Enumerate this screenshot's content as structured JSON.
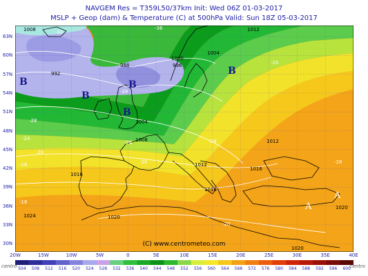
{
  "header": {
    "line1": "NAVGEM Res = T359L50/37km    Init: Wed 06Z 01-03-2017",
    "line2": "MSLP + Geop (dam) & Temperature (C) at 500hPa   Valid: Sun 18Z 05-03-2017"
  },
  "lat_labels": [
    "63N",
    "60N",
    "57N",
    "54N",
    "51N",
    "48N",
    "45N",
    "42N",
    "39N",
    "36N",
    "33N",
    "30N"
  ],
  "lon_labels": [
    "20W",
    "15W",
    "10W",
    "5W",
    "0",
    "5E",
    "10E",
    "15E",
    "20E",
    "25E",
    "30E",
    "35E",
    "40E"
  ],
  "credit": "(C) www.centrometeo.com",
  "brand_left": "centro",
  "brand_right": "centro",
  "colorbar": {
    "labels": [
      "504",
      "508",
      "512",
      "516",
      "520",
      "524",
      "528",
      "532",
      "536",
      "540",
      "544",
      "548",
      "552",
      "556",
      "560",
      "564",
      "568",
      "572",
      "576",
      "580",
      "584",
      "588",
      "592",
      "596",
      "600"
    ],
    "colors": [
      "#1e1e78",
      "#2d2d9c",
      "#4040b8",
      "#6262cc",
      "#8484dc",
      "#a8a8ec",
      "#caa0e8",
      "#6ad080",
      "#2ec03c",
      "#1aa826",
      "#0c9218",
      "#2eb82e",
      "#8ad84a",
      "#d8ee3a",
      "#f6e62a",
      "#f6c81c",
      "#f4a014",
      "#f07e10",
      "#ec5e0c",
      "#e23e08",
      "#d02408",
      "#b81808",
      "#9a1008",
      "#7a0a06",
      "#5a0604"
    ]
  },
  "pressure_labels": [
    "1008",
    "1012",
    "1004",
    "1000",
    "996",
    "992",
    "988",
    "1008",
    "1012",
    "1012",
    "1016",
    "1016",
    "1020",
    "1024",
    "1020",
    "1004",
    "1016",
    "1020"
  ],
  "temp_labels": [
    "-32",
    "-36",
    "-28",
    "-28",
    "-24",
    "-24",
    "-20",
    "-20",
    "-16",
    "-16",
    "-24",
    "-20",
    "-16",
    "-20"
  ],
  "lows": [
    "B",
    "B",
    "B",
    "B",
    "B"
  ],
  "highs": [
    "A",
    "A"
  ]
}
